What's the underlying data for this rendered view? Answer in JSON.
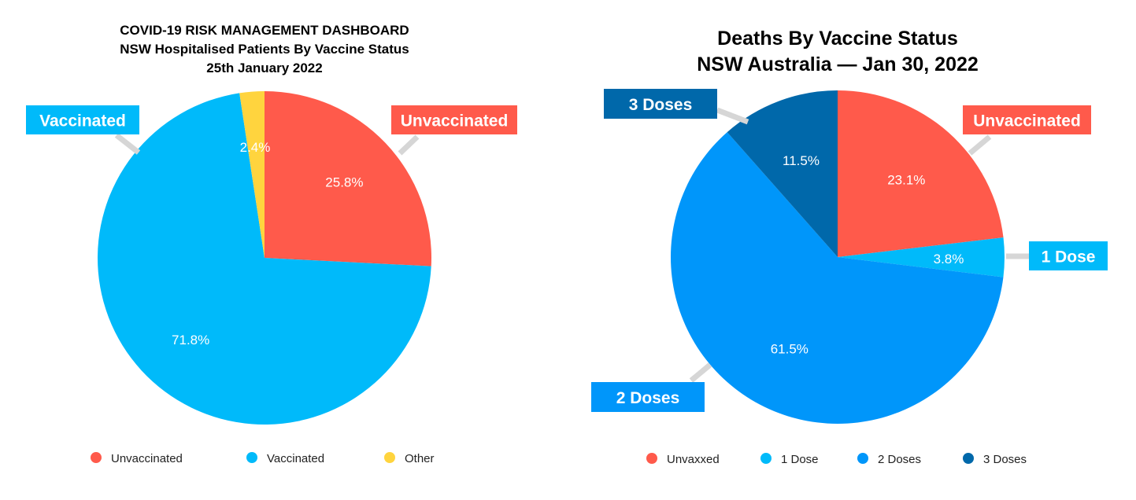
{
  "chart_data": [
    {
      "type": "pie",
      "title": "COVID-19 RISK MANAGEMENT DASHBOARD",
      "subtitle": "NSW Hospitalised Patients By Vaccine Status",
      "date": "25th January 2022",
      "slices": [
        {
          "name": "Unvaccinated",
          "value": 25.8,
          "label": "25.8%",
          "color": "#FF5A4B",
          "callout": "Unvaccinated"
        },
        {
          "name": "Vaccinated",
          "value": 71.8,
          "label": "71.8%",
          "color": "#00BAFA",
          "callout": "Vaccinated"
        },
        {
          "name": "Other",
          "value": 2.4,
          "label": "2.4%",
          "color": "#FFD43E",
          "callout": ""
        }
      ],
      "legend": [
        "Unvaccinated",
        "Vaccinated",
        "Other"
      ],
      "legend_position": "bottom"
    },
    {
      "type": "pie",
      "title": "Deaths By Vaccine Status",
      "subtitle": "NSW Australia — Jan 30, 2022",
      "slices": [
        {
          "name": "Unvaxxed",
          "value": 23.1,
          "label": "23.1%",
          "color": "#FF5A4B",
          "callout": "Unvaccinated"
        },
        {
          "name": "1 Dose",
          "value": 3.8,
          "label": "3.8%",
          "color": "#00BAFA",
          "callout": "1 Dose"
        },
        {
          "name": "2 Doses",
          "value": 61.5,
          "label": "61.5%",
          "color": "#0096FA",
          "callout": "2 Doses"
        },
        {
          "name": "3 Doses",
          "value": 11.5,
          "label": "11.5%",
          "color": "#0068AA",
          "callout": "3 Doses"
        }
      ],
      "legend": [
        "Unvaxxed",
        "1 Dose",
        "2 Doses",
        "3 Doses"
      ],
      "legend_position": "bottom"
    }
  ]
}
